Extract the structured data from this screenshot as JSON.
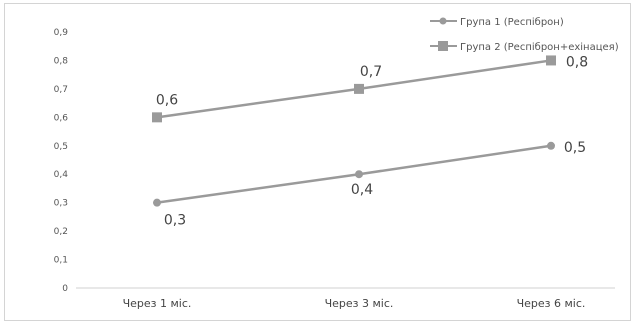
{
  "chart_data": {
    "type": "line",
    "categories": [
      "Через 1 міс.",
      "Через 3 міс.",
      "Через 6 міс."
    ],
    "series": [
      {
        "name": "Група 1 (Респіброн)",
        "values": [
          0.3,
          0.4,
          0.5
        ],
        "labels": [
          "0,3",
          "0,4",
          "0,5"
        ],
        "marker": "circle",
        "color": "#9a9a9a"
      },
      {
        "name": "Група 2 (Респіброн+ехінацея)",
        "values": [
          0.6,
          0.7,
          0.8
        ],
        "labels": [
          "0,6",
          "0,7",
          "0,8"
        ],
        "marker": "square",
        "color": "#9a9a9a"
      }
    ],
    "yticks": [
      "0",
      "0,1",
      "0,2",
      "0,3",
      "0,4",
      "0,5",
      "0,6",
      "0,7",
      "0,8",
      "0,9"
    ],
    "ylim": [
      0,
      0.9
    ],
    "grid": false,
    "legend_position": "top-right"
  }
}
